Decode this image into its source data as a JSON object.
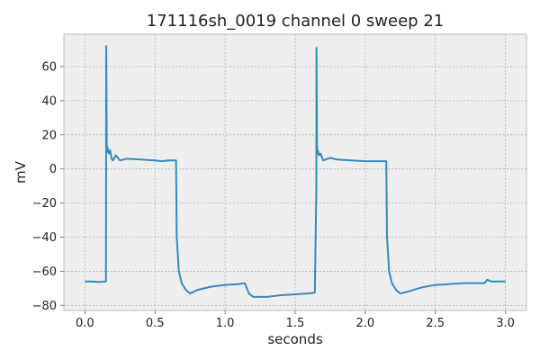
{
  "chart_data": {
    "type": "line",
    "title": "171116sh_0019 channel 0 sweep 21",
    "xlabel": "seconds",
    "ylabel": "mV",
    "xlim": [
      -0.15,
      3.15
    ],
    "ylim": [
      -83,
      79
    ],
    "xticks": [
      0.0,
      0.5,
      1.0,
      1.5,
      2.0,
      2.5,
      3.0
    ],
    "xtick_labels": [
      "0.0",
      "0.5",
      "1.0",
      "1.5",
      "2.0",
      "2.5",
      "3.0"
    ],
    "yticks": [
      -80,
      -60,
      -40,
      -20,
      0,
      20,
      40,
      60
    ],
    "ytick_labels": [
      "−80",
      "−60",
      "−40",
      "−20",
      "0",
      "20",
      "40",
      "60"
    ],
    "grid": true,
    "colors": {
      "line": "#348abd",
      "plot_bg": "#eeeeee",
      "grid": "#b0b0b0",
      "spine": "#bcbcbc"
    },
    "series": [
      {
        "points": [
          [
            0.0,
            -66
          ],
          [
            0.05,
            -66
          ],
          [
            0.1,
            -66.3
          ],
          [
            0.15,
            -66
          ],
          [
            0.151,
            -10
          ],
          [
            0.152,
            72
          ],
          [
            0.156,
            10
          ],
          [
            0.16,
            13
          ],
          [
            0.17,
            9
          ],
          [
            0.18,
            11
          ],
          [
            0.19,
            6
          ],
          [
            0.2,
            5
          ],
          [
            0.22,
            8
          ],
          [
            0.25,
            5
          ],
          [
            0.3,
            6
          ],
          [
            0.4,
            5.5
          ],
          [
            0.5,
            5
          ],
          [
            0.55,
            4.5
          ],
          [
            0.6,
            5
          ],
          [
            0.65,
            5
          ],
          [
            0.655,
            -40
          ],
          [
            0.67,
            -60
          ],
          [
            0.69,
            -67
          ],
          [
            0.72,
            -71
          ],
          [
            0.75,
            -73
          ],
          [
            0.8,
            -71
          ],
          [
            0.9,
            -69
          ],
          [
            1.0,
            -68
          ],
          [
            1.1,
            -67.5
          ],
          [
            1.14,
            -67
          ],
          [
            1.17,
            -73
          ],
          [
            1.2,
            -75
          ],
          [
            1.3,
            -75
          ],
          [
            1.4,
            -74
          ],
          [
            1.5,
            -73.5
          ],
          [
            1.6,
            -73
          ],
          [
            1.64,
            -72.5
          ],
          [
            1.651,
            -10
          ],
          [
            1.652,
            71
          ],
          [
            1.656,
            9
          ],
          [
            1.66,
            11
          ],
          [
            1.67,
            8
          ],
          [
            1.68,
            9
          ],
          [
            1.7,
            5
          ],
          [
            1.75,
            6.5
          ],
          [
            1.8,
            5.5
          ],
          [
            1.9,
            5
          ],
          [
            2.0,
            4.5
          ],
          [
            2.1,
            4.5
          ],
          [
            2.15,
            4.5
          ],
          [
            2.155,
            -40
          ],
          [
            2.17,
            -60
          ],
          [
            2.19,
            -67
          ],
          [
            2.22,
            -71
          ],
          [
            2.25,
            -73
          ],
          [
            2.3,
            -72
          ],
          [
            2.4,
            -69.5
          ],
          [
            2.5,
            -68
          ],
          [
            2.6,
            -67.5
          ],
          [
            2.7,
            -67
          ],
          [
            2.85,
            -67
          ],
          [
            2.87,
            -65
          ],
          [
            2.9,
            -66
          ],
          [
            3.0,
            -66
          ]
        ]
      }
    ]
  }
}
